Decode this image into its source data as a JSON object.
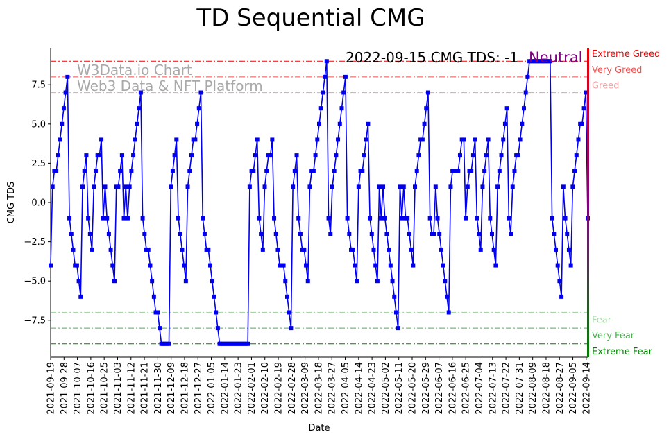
{
  "chart_data": {
    "type": "line",
    "title": "TD Sequential CMG",
    "xlabel": "Date",
    "ylabel": "CMG TDS",
    "ylim": [
      -9.85,
      9.85
    ],
    "x_start_date": "2021-09-19",
    "days_span": 361,
    "x_tick_labels": [
      "2021-09-19",
      "2021-09-28",
      "2021-10-07",
      "2021-10-16",
      "2021-10-25",
      "2021-11-03",
      "2021-11-12",
      "2021-11-21",
      "2021-11-30",
      "2021-12-09",
      "2021-12-18",
      "2021-12-27",
      "2022-01-05",
      "2022-01-14",
      "2022-01-23",
      "2022-02-01",
      "2022-02-10",
      "2022-02-19",
      "2022-02-28",
      "2022-03-09",
      "2022-03-18",
      "2022-03-27",
      "2022-04-05",
      "2022-04-14",
      "2022-04-23",
      "2022-05-02",
      "2022-05-11",
      "2022-05-20",
      "2022-05-29",
      "2022-06-07",
      "2022-06-16",
      "2022-06-25",
      "2022-07-04",
      "2022-07-13",
      "2022-07-22",
      "2022-07-31",
      "2022-08-09",
      "2022-08-18",
      "2022-08-27",
      "2022-09-05",
      "2022-09-14"
    ],
    "y_ticks": [
      -7.5,
      -5.0,
      -2.5,
      0.0,
      2.5,
      5.0,
      7.5
    ],
    "y_tick_labels": [
      "−7.5",
      "−5.0",
      "−2.5",
      "0.0",
      "2.5",
      "5.0",
      "7.5"
    ],
    "series": [
      {
        "name": "CMG TDS",
        "color": "#0000ee",
        "values": [
          -4,
          1,
          2,
          2,
          3,
          4,
          5,
          6,
          7,
          8,
          -1,
          -2,
          -3,
          -4,
          -4,
          -5,
          -6,
          1,
          2,
          3,
          -1,
          -2,
          -3,
          1,
          2,
          3,
          3,
          4,
          -1,
          1,
          -1,
          -2,
          -3,
          -4,
          -5,
          1,
          1,
          2,
          3,
          -1,
          1,
          -1,
          1,
          2,
          3,
          4,
          5,
          6,
          7,
          -1,
          -2,
          -3,
          -3,
          -4,
          -5,
          -6,
          -7,
          -7,
          -8,
          -9,
          -9,
          -9,
          -9,
          -9,
          1,
          2,
          3,
          4,
          -1,
          -2,
          -3,
          -4,
          -5,
          1,
          2,
          3,
          4,
          4,
          5,
          6,
          7,
          -1,
          -2,
          -3,
          -3,
          -4,
          -5,
          -6,
          -7,
          -8,
          -9,
          -9,
          -9,
          -9,
          -9,
          -9,
          -9,
          -9,
          -9,
          -9,
          -9,
          -9,
          -9,
          -9,
          -9,
          -9,
          1,
          2,
          2,
          3,
          4,
          -1,
          -2,
          -3,
          1,
          2,
          3,
          3,
          4,
          -1,
          -2,
          -3,
          -4,
          -4,
          -4,
          -5,
          -6,
          -7,
          -8,
          1,
          2,
          3,
          -1,
          -2,
          -3,
          -3,
          -4,
          -5,
          1,
          2,
          2,
          3,
          4,
          5,
          6,
          7,
          8,
          9,
          -1,
          -2,
          1,
          2,
          3,
          4,
          5,
          6,
          7,
          8,
          -1,
          -2,
          -3,
          -3,
          -4,
          -5,
          1,
          2,
          2,
          3,
          4,
          5,
          -1,
          -2,
          -3,
          -4,
          -5,
          1,
          -1,
          1,
          -1,
          -2,
          -3,
          -4,
          -5,
          -6,
          -7,
          -8,
          1,
          -1,
          1,
          -1,
          -1,
          -2,
          -3,
          -4,
          1,
          2,
          3,
          4,
          4,
          5,
          6,
          7,
          -1,
          -2,
          -2,
          1,
          -1,
          -2,
          -3,
          -4,
          -5,
          -6,
          -7,
          1,
          2,
          2,
          2,
          2,
          3,
          4,
          4,
          -1,
          1,
          2,
          2,
          3,
          4,
          -1,
          -2,
          -3,
          1,
          2,
          3,
          4,
          -1,
          -2,
          -3,
          -4,
          1,
          2,
          3,
          4,
          5,
          6,
          -1,
          -2,
          1,
          2,
          3,
          3,
          4,
          5,
          6,
          7,
          8,
          9,
          9,
          9,
          9,
          9,
          9,
          9,
          9,
          9,
          9,
          9,
          9,
          -1,
          -2,
          -3,
          -4,
          -5,
          -6,
          1,
          -1,
          -2,
          -3,
          -4,
          1,
          2,
          3,
          4,
          5,
          5,
          6,
          7,
          -1
        ]
      }
    ],
    "levels": [
      {
        "name": "Extreme Greed",
        "y": 9,
        "color": "#ee0000"
      },
      {
        "name": "Very Greed",
        "y": 8,
        "color": "#f05050"
      },
      {
        "name": "Greed",
        "y": 7,
        "color": "#f4a7a7"
      },
      {
        "name": "Fear",
        "y": -7,
        "color": "#a8d8a8"
      },
      {
        "name": "Very Fear",
        "y": -8,
        "color": "#4caf50"
      },
      {
        "name": "Extreme Fear",
        "y": -9,
        "color": "#008000"
      }
    ],
    "annotation": {
      "text": "2022-09-15 CMG TDS: -1",
      "status": "Neutral",
      "status_color": "#800080"
    },
    "watermark": {
      "line1": "W3Data.io Chart",
      "line2": "Web3 Data & NFT Platform"
    }
  }
}
